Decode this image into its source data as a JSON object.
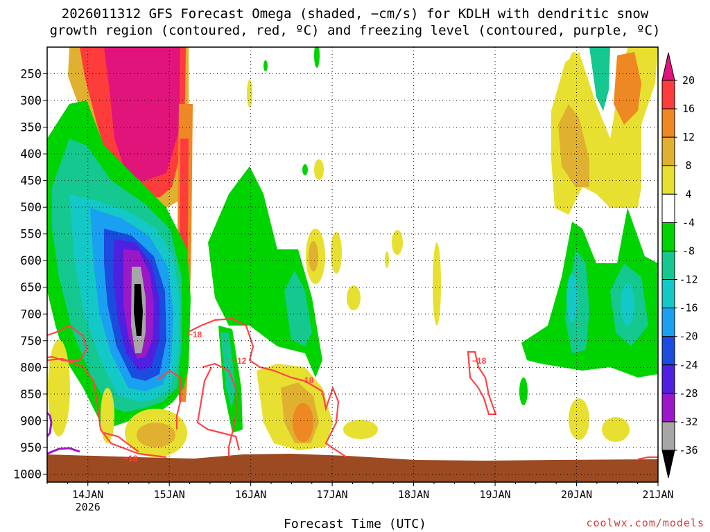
{
  "title_line1": "2026011312 GFS Forecast Omega (shaded, −cm/s) for KDLH with dendritic snow",
  "title_line2": "growth region (contoured, red, ºC) and freezing level (contoured, purple, ºC)",
  "credit": "coolwx.com/models",
  "chart_data": {
    "type": "heatmap",
    "xlabel": "Forecast Time (UTC)",
    "ylabel": "",
    "x_ticks": [
      {
        "label": "14JAN",
        "sub": "2026",
        "t": 1
      },
      {
        "label": "15JAN",
        "sub": "",
        "t": 2
      },
      {
        "label": "16JAN",
        "sub": "",
        "t": 3
      },
      {
        "label": "17JAN",
        "sub": "",
        "t": 4
      },
      {
        "label": "18JAN",
        "sub": "",
        "t": 5
      },
      {
        "label": "19JAN",
        "sub": "",
        "t": 6
      },
      {
        "label": "20JAN",
        "sub": "",
        "t": 7
      },
      {
        "label": "21JAN",
        "sub": "",
        "t": 8
      }
    ],
    "x_range_days": [
      0.5,
      8.0
    ],
    "y_ticks": [
      250,
      300,
      350,
      400,
      450,
      500,
      550,
      600,
      650,
      700,
      750,
      800,
      850,
      900,
      950,
      1000
    ],
    "y_range_hpa": [
      200,
      1015
    ],
    "grid": true,
    "colorbar": {
      "levels": [
        -36,
        -32,
        -28,
        -24,
        -20,
        -16,
        -12,
        -8,
        -4,
        4,
        8,
        12,
        16,
        20
      ],
      "colors": [
        "#000000",
        "#a6a6a6",
        "#9b18c9",
        "#5020e0",
        "#1a4ce0",
        "#1aa0f0",
        "#14c8c8",
        "#14c890",
        "#00d400",
        "#ffffff",
        "#e8e030",
        "#e0b030",
        "#ee8822",
        "#ff3c3c",
        "#e0147a"
      ]
    },
    "dendritic_labels": [
      "−18",
      "−12",
      "−18",
      "−18",
      "−18"
    ],
    "ground_color": "#9c4a22",
    "dgz_color": "#ff4444",
    "freezing_color": "#9a18cc"
  }
}
